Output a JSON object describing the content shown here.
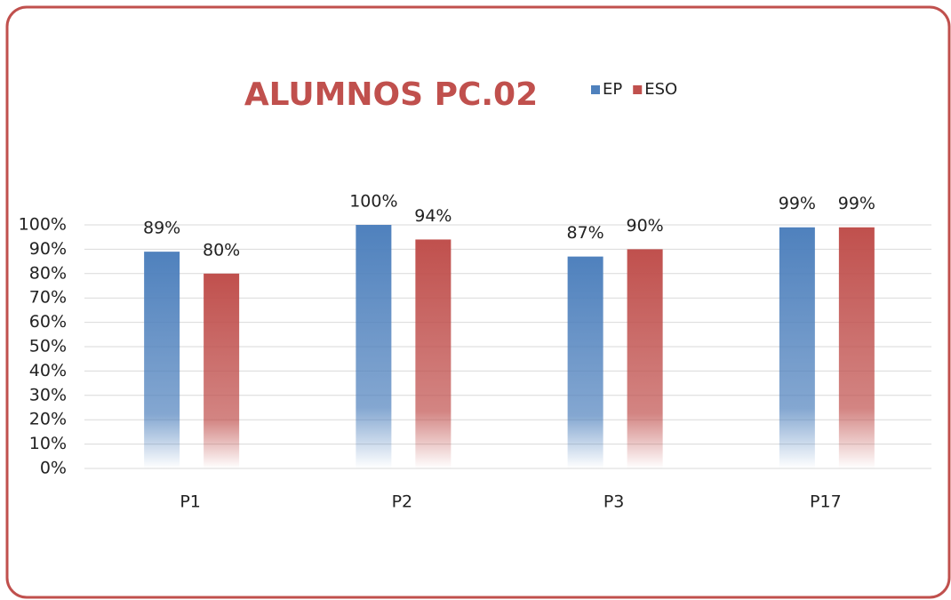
{
  "chart_data": {
    "type": "bar",
    "title": "ALUMNOS PC.02",
    "categories": [
      "P1",
      "P2",
      "P3",
      "P17"
    ],
    "series": [
      {
        "name": "EP",
        "color": "#4f81bd",
        "values": [
          89,
          100,
          87,
          99
        ],
        "value_labels": [
          "89%",
          "100%",
          "87%",
          "99%"
        ]
      },
      {
        "name": "ESO",
        "color": "#c0504d",
        "values": [
          80,
          94,
          90,
          99
        ],
        "value_labels": [
          "80%",
          "94%",
          "90%",
          "99%"
        ]
      }
    ],
    "ylim": [
      0,
      100
    ],
    "yticks": [
      {
        "value": 0,
        "label": "0%"
      },
      {
        "value": 10,
        "label": "10%"
      },
      {
        "value": 20,
        "label": "20%"
      },
      {
        "value": 30,
        "label": "30%"
      },
      {
        "value": 40,
        "label": "40%"
      },
      {
        "value": 50,
        "label": "50%"
      },
      {
        "value": 60,
        "label": "60%"
      },
      {
        "value": 70,
        "label": "70%"
      },
      {
        "value": 80,
        "label": "80%"
      },
      {
        "value": 90,
        "label": "90%"
      },
      {
        "value": 100,
        "label": "100%"
      }
    ],
    "grid": true,
    "legend": "top"
  }
}
